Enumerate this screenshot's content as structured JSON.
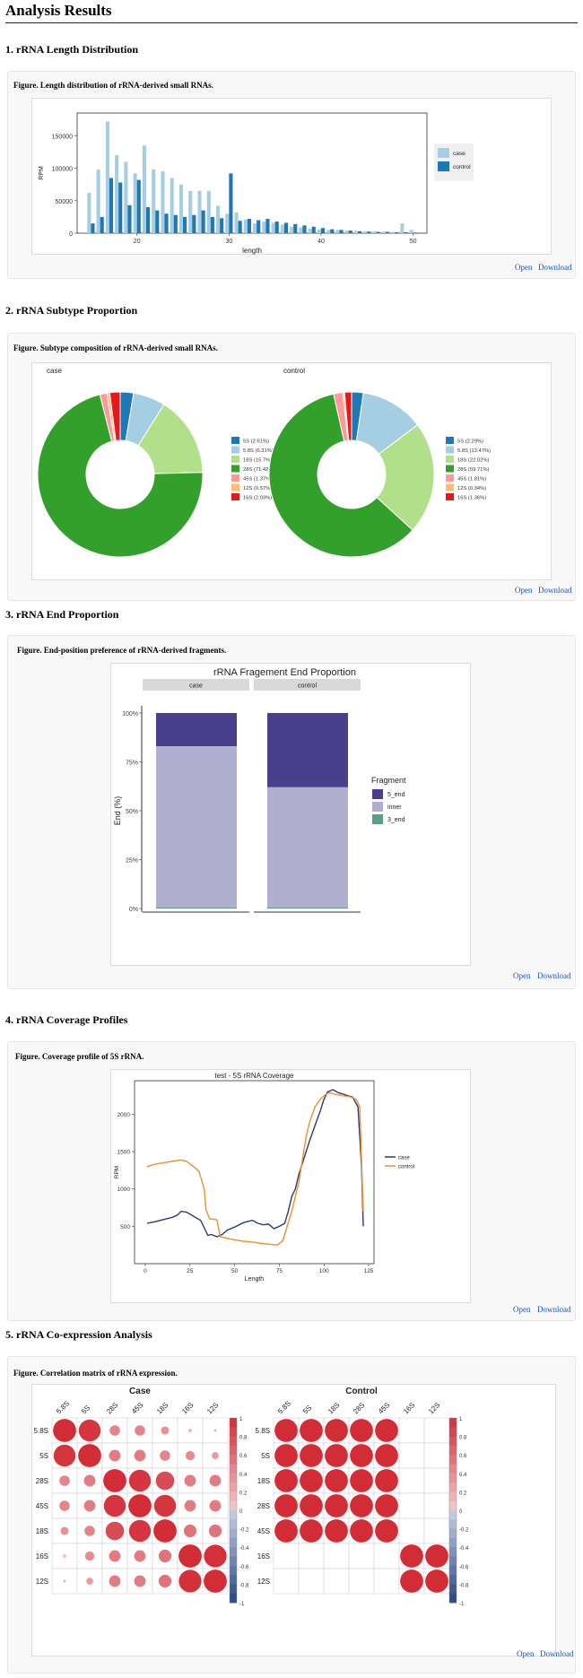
{
  "page_title": "Analysis Results",
  "links": {
    "open": "Open",
    "download": "Download"
  },
  "sections": [
    {
      "title": "1. rRNA Length Distribution",
      "caption": "Figure. Length distribution of rRNA-derived small RNAs."
    },
    {
      "title": "2. rRNA Subtype Proportion",
      "caption": "Figure. Subtype composition of rRNA-derived small RNAs."
    },
    {
      "title": "3. rRNA End Proportion",
      "caption": "Figure. End-position preference of rRNA-derived fragments."
    },
    {
      "title": "4. rRNA Coverage Profiles",
      "caption": "Figure. Coverage profile of 5S rRNA."
    },
    {
      "title": "5. rRNA Co-expression Analysis",
      "caption": "Figure. Correlation matrix of rRNA expression."
    }
  ],
  "colors": {
    "case_light": "#a6cee3",
    "control_dark": "#1f78b4",
    "purple": "#4a3f8c",
    "lavender": "#b0afd0",
    "teal": "#5a9e8a",
    "orange": "#f28e2b",
    "navy": "#2b3a7a"
  },
  "chart_data": [
    {
      "type": "bar",
      "xlabel": "length",
      "ylabel": "RPM",
      "xticks": [
        20,
        30,
        40,
        50
      ],
      "yticks": [
        "0",
        "50000",
        "100000",
        "150000"
      ],
      "ylim": [
        0,
        185000
      ],
      "x": [
        15,
        16,
        17,
        18,
        19,
        20,
        21,
        22,
        23,
        24,
        25,
        26,
        27,
        28,
        29,
        30,
        31,
        32,
        33,
        34,
        35,
        36,
        37,
        38,
        39,
        40,
        41,
        42,
        43,
        44,
        45,
        46,
        47,
        48,
        49,
        50
      ],
      "series": [
        {
          "name": "case",
          "color": "#a6cee3",
          "values": [
            62000,
            98000,
            172000,
            120000,
            110000,
            92000,
            135000,
            98000,
            95000,
            85000,
            75000,
            65000,
            65000,
            65000,
            42000,
            30000,
            32000,
            21000,
            15000,
            18000,
            16000,
            13000,
            10000,
            9000,
            7000,
            6000,
            5000,
            5000,
            4000,
            3500,
            3000,
            3000,
            2500,
            2000,
            15000,
            5000
          ]
        },
        {
          "name": "control",
          "color": "#1f78b4",
          "values": [
            15000,
            25000,
            85000,
            78000,
            43000,
            82000,
            40000,
            35000,
            30000,
            28000,
            25000,
            28000,
            35000,
            25000,
            23000,
            92000,
            19000,
            22000,
            20000,
            22000,
            18000,
            16000,
            14000,
            12000,
            10000,
            8000,
            6000,
            5000,
            4000,
            3000,
            2500,
            2000,
            2000,
            1500,
            1500,
            1000
          ]
        }
      ]
    },
    {
      "type": "pie",
      "title": "case",
      "categories": [
        "5S (2.61%)",
        "5.8S (6.31%)",
        "18S (15.7%)",
        "28S (71.42%)",
        "45S (1.37%)",
        "12S (0.57%)",
        "16S (2.03%)"
      ],
      "values": [
        2.61,
        6.31,
        15.7,
        71.42,
        1.37,
        0.57,
        2.03
      ],
      "colors": [
        "#1f78b4",
        "#a6cee3",
        "#b2df8a",
        "#33a02c",
        "#fb9a99",
        "#fdbf6f",
        "#e31a1c"
      ]
    },
    {
      "type": "pie",
      "title": "control",
      "categories": [
        "5S (2.29%)",
        "5.8S (12.47%)",
        "18S (22.02%)",
        "28S (59.71%)",
        "45S (1.81%)",
        "12S (0.34%)",
        "16S (1.36%)"
      ],
      "values": [
        2.29,
        12.47,
        22.02,
        59.71,
        1.81,
        0.34,
        1.36
      ],
      "colors": [
        "#1f78b4",
        "#a6cee3",
        "#b2df8a",
        "#33a02c",
        "#fb9a99",
        "#fdbf6f",
        "#e31a1c"
      ]
    },
    {
      "type": "bar",
      "title": "rRNA Fragement End Proportion",
      "ylabel": "End (%)",
      "yticks": [
        "0%",
        "25%",
        "50%",
        "75%",
        "100%"
      ],
      "facets": [
        "case",
        "control"
      ],
      "legend_title": "Fragment",
      "series": [
        {
          "name": "5_end",
          "color": "#4a3f8c",
          "values": [
            17,
            38
          ]
        },
        {
          "name": "inner",
          "color": "#b0afd0",
          "values": [
            82.5,
            61.5
          ]
        },
        {
          "name": "3_end",
          "color": "#5a9e8a",
          "values": [
            0.5,
            0.5
          ]
        }
      ]
    },
    {
      "type": "line",
      "title": "test - 5S rRNA Coverage",
      "xlabel": "Length",
      "ylabel": "RPM",
      "xticks": [
        0,
        25,
        50,
        75,
        100,
        125
      ],
      "yticks": [
        500,
        1000,
        1500,
        2000
      ],
      "xlim": [
        -6,
        128
      ],
      "ylim": [
        0,
        2450
      ],
      "series": [
        {
          "name": "case",
          "color": "#2b3a7a",
          "points": [
            [
              1,
              540
            ],
            [
              5,
              560
            ],
            [
              10,
              590
            ],
            [
              15,
              620
            ],
            [
              18,
              650
            ],
            [
              20,
              700
            ],
            [
              23,
              690
            ],
            [
              26,
              650
            ],
            [
              28,
              620
            ],
            [
              31,
              580
            ],
            [
              33,
              480
            ],
            [
              35,
              380
            ],
            [
              37,
              390
            ],
            [
              40,
              360
            ],
            [
              43,
              390
            ],
            [
              46,
              450
            ],
            [
              50,
              490
            ],
            [
              55,
              550
            ],
            [
              60,
              580
            ],
            [
              63,
              540
            ],
            [
              66,
              520
            ],
            [
              69,
              530
            ],
            [
              72,
              470
            ],
            [
              75,
              500
            ],
            [
              78,
              540
            ],
            [
              80,
              700
            ],
            [
              82,
              900
            ],
            [
              84,
              1000
            ],
            [
              86,
              1200
            ],
            [
              88,
              1350
            ],
            [
              90,
              1500
            ],
            [
              92,
              1650
            ],
            [
              95,
              1850
            ],
            [
              98,
              2050
            ],
            [
              100,
              2200
            ],
            [
              102,
              2300
            ],
            [
              105,
              2330
            ],
            [
              108,
              2290
            ],
            [
              112,
              2260
            ],
            [
              116,
              2230
            ],
            [
              119,
              2100
            ],
            [
              121,
              1300
            ],
            [
              122,
              500
            ]
          ]
        },
        {
          "name": "control",
          "color": "#f28e2b",
          "points": [
            [
              1,
              1300
            ],
            [
              5,
              1330
            ],
            [
              10,
              1350
            ],
            [
              15,
              1370
            ],
            [
              18,
              1380
            ],
            [
              20,
              1390
            ],
            [
              23,
              1370
            ],
            [
              26,
              1320
            ],
            [
              30,
              1240
            ],
            [
              33,
              1000
            ],
            [
              34,
              720
            ],
            [
              36,
              600
            ],
            [
              40,
              590
            ],
            [
              42,
              360
            ],
            [
              46,
              340
            ],
            [
              50,
              320
            ],
            [
              55,
              300
            ],
            [
              60,
              290
            ],
            [
              65,
              270
            ],
            [
              70,
              260
            ],
            [
              74,
              250
            ],
            [
              77,
              310
            ],
            [
              80,
              550
            ],
            [
              82,
              700
            ],
            [
              84,
              900
            ],
            [
              86,
              1100
            ],
            [
              88,
              1400
            ],
            [
              90,
              1700
            ],
            [
              92,
              1900
            ],
            [
              95,
              2100
            ],
            [
              98,
              2200
            ],
            [
              100,
              2250
            ],
            [
              103,
              2290
            ],
            [
              106,
              2270
            ],
            [
              110,
              2250
            ],
            [
              114,
              2240
            ],
            [
              118,
              2200
            ],
            [
              120,
              2100
            ],
            [
              122,
              700
            ]
          ]
        }
      ]
    },
    {
      "type": "heatmap",
      "title": "Case",
      "labels": [
        "5.8S",
        "5S",
        "28S",
        "45S",
        "18S",
        "16S",
        "12S"
      ],
      "colorbar_ticks": [
        "1",
        "0.8",
        "0.6",
        "0.4",
        "0.2",
        "0",
        "-0.2",
        "-0.4",
        "-0.6",
        "-0.8",
        "-1"
      ],
      "matrix": [
        [
          1.0,
          0.95,
          0.45,
          0.45,
          0.35,
          0.15,
          -0.1
        ],
        [
          0.95,
          1.0,
          0.5,
          0.5,
          0.45,
          0.4,
          0.3
        ],
        [
          0.45,
          0.5,
          1.0,
          0.95,
          0.8,
          0.5,
          0.5
        ],
        [
          0.45,
          0.5,
          0.95,
          1.0,
          0.95,
          0.5,
          0.5
        ],
        [
          0.35,
          0.45,
          0.8,
          0.95,
          1.0,
          0.55,
          0.55
        ],
        [
          0.15,
          0.4,
          0.5,
          0.5,
          0.55,
          1.0,
          0.98
        ],
        [
          -0.1,
          0.3,
          0.5,
          0.5,
          0.55,
          0.98,
          1.0
        ]
      ]
    },
    {
      "type": "heatmap",
      "title": "Control",
      "labels": [
        "5.8S",
        "5S",
        "18S",
        "28S",
        "45S",
        "16S",
        "12S"
      ],
      "colorbar_ticks": [
        "1",
        "0.8",
        "0.6",
        "0.4",
        "0.2",
        "0",
        "-0.2",
        "-0.4",
        "-0.6",
        "-0.8",
        "-1"
      ],
      "matrix": [
        [
          1,
          1,
          1,
          1,
          1,
          0,
          0
        ],
        [
          1,
          1,
          1,
          1,
          1,
          0,
          0
        ],
        [
          1,
          1,
          1,
          1,
          1,
          0,
          0
        ],
        [
          1,
          1,
          1,
          1,
          1,
          0,
          0
        ],
        [
          1,
          1,
          1,
          1,
          1,
          0,
          0
        ],
        [
          0,
          0,
          0,
          0,
          0,
          1,
          1
        ],
        [
          0,
          0,
          0,
          0,
          0,
          1,
          1
        ]
      ]
    }
  ]
}
